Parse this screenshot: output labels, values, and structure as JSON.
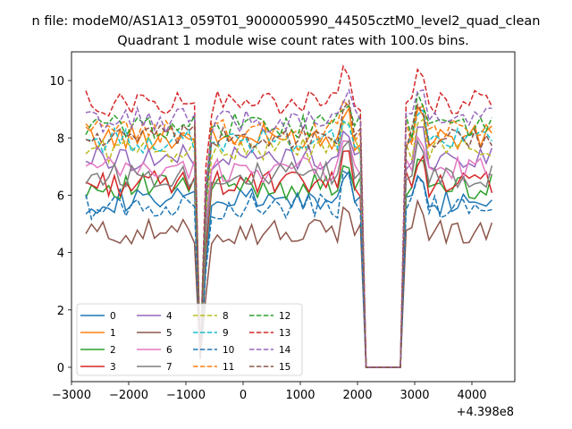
{
  "chart_data": {
    "type": "line",
    "suptitle": "n file: modeM0/AS1A13_059T01_9000005990_44505cztM0_level2_quad_clean",
    "title": "Quadrant 1 module wise count rates with 100.0s bins.",
    "xlabel": "",
    "ylabel": "",
    "x_offset_label": "+4.398e8",
    "xlim": [
      -3000,
      4750
    ],
    "ylim": [
      -0.5,
      11.0
    ],
    "x_ticks": [
      -3000,
      -2000,
      -1000,
      0,
      1000,
      2000,
      3000,
      4000
    ],
    "x_tick_labels": [
      "−3000",
      "−2000",
      "−1000",
      "0",
      "1000",
      "2000",
      "3000",
      "4000"
    ],
    "y_ticks": [
      0,
      2,
      4,
      6,
      8,
      10
    ],
    "y_tick_labels": [
      "0",
      "2",
      "4",
      "6",
      "8",
      "10"
    ],
    "grid": false,
    "legend_position": "lower left",
    "legend_columns": 4,
    "x_start": -2750,
    "x_step": 100,
    "gaps": [
      {
        "start": -750,
        "end": -700,
        "min": 0.3
      },
      {
        "start": 2100,
        "end": 2800,
        "min": 0.0
      }
    ],
    "series": [
      {
        "name": "0",
        "color": "#1f77b4",
        "style": "solid",
        "level": 5.8
      },
      {
        "name": "1",
        "color": "#ff7f0e",
        "style": "solid",
        "level": 8.0
      },
      {
        "name": "2",
        "color": "#2ca02c",
        "style": "solid",
        "level": 6.3
      },
      {
        "name": "3",
        "color": "#d62728",
        "style": "solid",
        "level": 6.4
      },
      {
        "name": "4",
        "color": "#9467bd",
        "style": "solid",
        "level": 7.3
      },
      {
        "name": "5",
        "color": "#8c564b",
        "style": "solid",
        "level": 4.7
      },
      {
        "name": "6",
        "color": "#e377c2",
        "style": "solid",
        "level": 6.9
      },
      {
        "name": "7",
        "color": "#7f7f7f",
        "style": "solid",
        "level": 6.7
      },
      {
        "name": "8",
        "color": "#bcbd22",
        "style": "dashed",
        "level": 7.6
      },
      {
        "name": "9",
        "color": "#17becf",
        "style": "dashed",
        "level": 7.9
      },
      {
        "name": "10",
        "color": "#1f77b4",
        "style": "dashed",
        "level": 5.6
      },
      {
        "name": "11",
        "color": "#ff7f0e",
        "style": "dashed",
        "level": 8.2
      },
      {
        "name": "12",
        "color": "#2ca02c",
        "style": "dashed",
        "level": 8.4
      },
      {
        "name": "13",
        "color": "#d62728",
        "style": "dashed",
        "level": 9.2
      },
      {
        "name": "14",
        "color": "#9467bd",
        "style": "dashed",
        "level": 8.6
      },
      {
        "name": "15",
        "color": "#8c564b",
        "style": "dashed",
        "level": 8.0
      }
    ]
  }
}
